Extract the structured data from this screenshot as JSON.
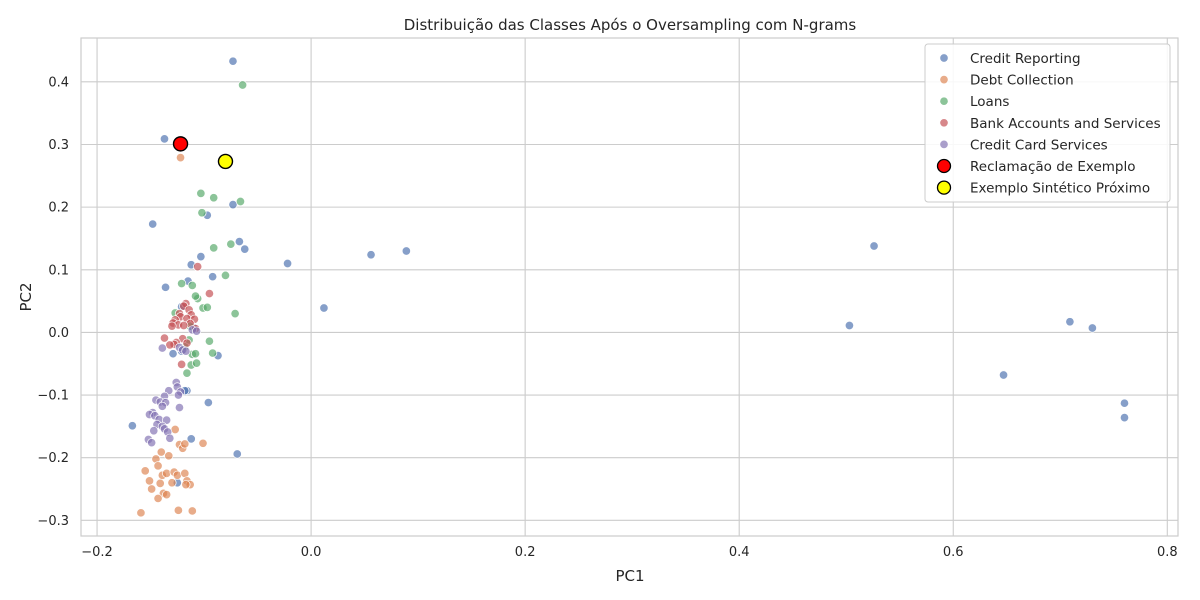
{
  "chart_data": {
    "type": "scatter",
    "title": "Distribuição das Classes Após o Oversampling com N-grams",
    "xlabel": "PC1",
    "ylabel": "PC2",
    "xlim": [
      -0.215,
      0.81
    ],
    "ylim": [
      -0.325,
      0.47
    ],
    "x_ticks": [
      -0.2,
      0.0,
      0.2,
      0.4,
      0.6,
      0.8
    ],
    "x_tick_labels": [
      "−0.2",
      "0.0",
      "0.2",
      "0.4",
      "0.6",
      "0.8"
    ],
    "y_ticks": [
      -0.3,
      -0.2,
      -0.1,
      0.0,
      0.1,
      0.2,
      0.3,
      0.4
    ],
    "y_tick_labels": [
      "−0.3",
      "−0.2",
      "−0.1",
      "0.0",
      "0.1",
      "0.2",
      "0.3",
      "0.4"
    ],
    "grid": true,
    "legend_position": "top-right",
    "series": [
      {
        "name": "Credit Reporting",
        "color": "#4c72b0",
        "points": [
          [
            -0.073,
            0.433
          ],
          [
            -0.137,
            0.309
          ],
          [
            -0.148,
            0.173
          ],
          [
            -0.073,
            0.204
          ],
          [
            -0.097,
            0.187
          ],
          [
            -0.067,
            0.145
          ],
          [
            -0.062,
            0.133
          ],
          [
            -0.103,
            0.121
          ],
          [
            -0.112,
            0.108
          ],
          [
            -0.092,
            0.089
          ],
          [
            -0.136,
            0.072
          ],
          [
            -0.115,
            0.082
          ],
          [
            -0.022,
            0.11
          ],
          [
            0.012,
            0.039
          ],
          [
            0.056,
            0.124
          ],
          [
            0.089,
            0.13
          ],
          [
            -0.121,
            0.041
          ],
          [
            -0.11,
            0.008
          ],
          [
            -0.087,
            -0.037
          ],
          [
            -0.129,
            -0.034
          ],
          [
            -0.121,
            -0.03
          ],
          [
            -0.116,
            -0.093
          ],
          [
            -0.118,
            -0.093
          ],
          [
            -0.096,
            -0.112
          ],
          [
            -0.112,
            -0.17
          ],
          [
            -0.069,
            -0.194
          ],
          [
            -0.125,
            -0.24
          ],
          [
            -0.167,
            -0.149
          ],
          [
            0.526,
            0.138
          ],
          [
            0.503,
            0.011
          ],
          [
            0.647,
            -0.068
          ],
          [
            0.709,
            0.017
          ],
          [
            0.73,
            0.007
          ],
          [
            0.76,
            -0.113
          ],
          [
            0.76,
            -0.136
          ]
        ]
      },
      {
        "name": "Debt Collection",
        "color": "#dd8452",
        "points": [
          [
            -0.122,
            0.279
          ],
          [
            -0.123,
            -0.179
          ],
          [
            -0.12,
            -0.185
          ],
          [
            -0.118,
            -0.178
          ],
          [
            -0.101,
            -0.177
          ],
          [
            -0.127,
            -0.155
          ],
          [
            -0.145,
            -0.202
          ],
          [
            -0.143,
            -0.213
          ],
          [
            -0.14,
            -0.191
          ],
          [
            -0.133,
            -0.197
          ],
          [
            -0.139,
            -0.228
          ],
          [
            -0.135,
            -0.225
          ],
          [
            -0.155,
            -0.221
          ],
          [
            -0.151,
            -0.237
          ],
          [
            -0.128,
            -0.223
          ],
          [
            -0.125,
            -0.228
          ],
          [
            -0.118,
            -0.225
          ],
          [
            -0.116,
            -0.237
          ],
          [
            -0.113,
            -0.243
          ],
          [
            -0.117,
            -0.243
          ],
          [
            -0.141,
            -0.241
          ],
          [
            -0.138,
            -0.257
          ],
          [
            -0.135,
            -0.259
          ],
          [
            -0.149,
            -0.25
          ],
          [
            -0.143,
            -0.265
          ],
          [
            -0.13,
            -0.24
          ],
          [
            -0.159,
            -0.288
          ],
          [
            -0.124,
            -0.284
          ],
          [
            -0.111,
            -0.285
          ]
        ]
      },
      {
        "name": "Loans",
        "color": "#55a868",
        "points": [
          [
            -0.064,
            0.395
          ],
          [
            -0.103,
            0.222
          ],
          [
            -0.091,
            0.215
          ],
          [
            -0.066,
            0.209
          ],
          [
            -0.102,
            0.191
          ],
          [
            -0.075,
            0.141
          ],
          [
            -0.091,
            0.135
          ],
          [
            -0.08,
            0.091
          ],
          [
            -0.121,
            0.078
          ],
          [
            -0.111,
            0.075
          ],
          [
            -0.106,
            0.054
          ],
          [
            -0.108,
            0.058
          ],
          [
            -0.101,
            0.039
          ],
          [
            -0.097,
            0.04
          ],
          [
            -0.071,
            0.03
          ],
          [
            -0.127,
            0.031
          ],
          [
            -0.113,
            0.01
          ],
          [
            -0.095,
            -0.014
          ],
          [
            -0.118,
            -0.023
          ],
          [
            -0.114,
            -0.012
          ],
          [
            -0.092,
            -0.033
          ],
          [
            -0.111,
            -0.035
          ],
          [
            -0.108,
            -0.034
          ],
          [
            -0.112,
            -0.052
          ],
          [
            -0.107,
            -0.049
          ],
          [
            -0.116,
            -0.065
          ]
        ]
      },
      {
        "name": "Bank Accounts and Services",
        "color": "#c44e52",
        "points": [
          [
            -0.106,
            0.105
          ],
          [
            -0.095,
            0.062
          ],
          [
            -0.117,
            0.046
          ],
          [
            -0.119,
            0.042
          ],
          [
            -0.114,
            0.036
          ],
          [
            -0.123,
            0.03
          ],
          [
            -0.112,
            0.028
          ],
          [
            -0.122,
            0.025
          ],
          [
            -0.127,
            0.02
          ],
          [
            -0.116,
            0.022
          ],
          [
            -0.109,
            0.021
          ],
          [
            -0.129,
            0.015
          ],
          [
            -0.113,
            0.014
          ],
          [
            -0.124,
            0.012
          ],
          [
            -0.119,
            0.011
          ],
          [
            -0.108,
            0.006
          ],
          [
            -0.13,
            0.01
          ],
          [
            -0.12,
            -0.01
          ],
          [
            -0.137,
            -0.009
          ],
          [
            -0.126,
            -0.016
          ],
          [
            -0.128,
            -0.019
          ],
          [
            -0.132,
            -0.02
          ],
          [
            -0.116,
            -0.017
          ],
          [
            -0.121,
            -0.051
          ]
        ]
      },
      {
        "name": "Credit Card Services",
        "color": "#8172b3",
        "points": [
          [
            -0.111,
            0.004
          ],
          [
            -0.107,
            0.002
          ],
          [
            -0.123,
            -0.024
          ],
          [
            -0.12,
            -0.028
          ],
          [
            -0.117,
            -0.03
          ],
          [
            -0.139,
            -0.025
          ],
          [
            -0.126,
            -0.08
          ],
          [
            -0.125,
            -0.087
          ],
          [
            -0.133,
            -0.093
          ],
          [
            -0.122,
            -0.095
          ],
          [
            -0.124,
            -0.1
          ],
          [
            -0.137,
            -0.102
          ],
          [
            -0.145,
            -0.108
          ],
          [
            -0.141,
            -0.111
          ],
          [
            -0.136,
            -0.112
          ],
          [
            -0.139,
            -0.118
          ],
          [
            -0.123,
            -0.12
          ],
          [
            -0.148,
            -0.128
          ],
          [
            -0.151,
            -0.131
          ],
          [
            -0.146,
            -0.133
          ],
          [
            -0.142,
            -0.139
          ],
          [
            -0.135,
            -0.14
          ],
          [
            -0.144,
            -0.147
          ],
          [
            -0.139,
            -0.15
          ],
          [
            -0.137,
            -0.154
          ],
          [
            -0.134,
            -0.159
          ],
          [
            -0.147,
            -0.157
          ],
          [
            -0.132,
            -0.169
          ],
          [
            -0.152,
            -0.171
          ],
          [
            -0.149,
            -0.176
          ]
        ]
      }
    ],
    "highlights": [
      {
        "name": "Reclamação de Exemplo",
        "color": "#ff0000",
        "edge": "#000000",
        "x": -0.122,
        "y": 0.301
      },
      {
        "name": "Exemplo Sintético Próximo",
        "color": "#ffff00",
        "edge": "#000000",
        "x": -0.08,
        "y": 0.273
      }
    ]
  }
}
